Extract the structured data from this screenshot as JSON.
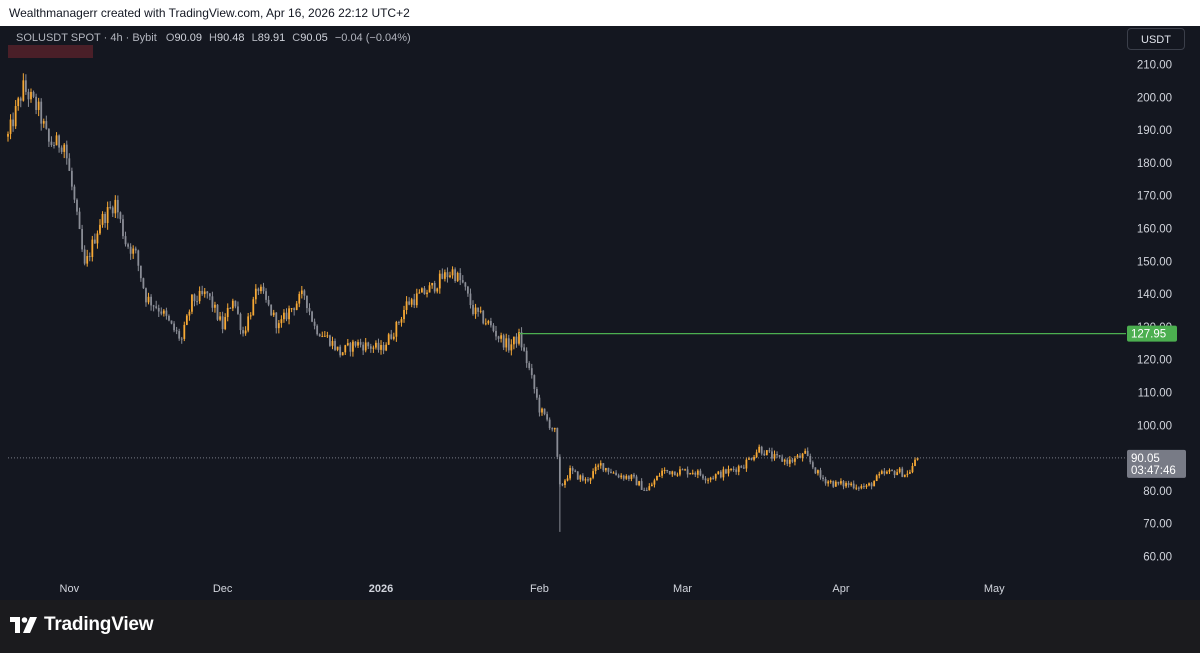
{
  "header": {
    "attribution": "Wealthmanagerr created with TradingView.com, Apr 16, 2026 22:12 UTC+2"
  },
  "legend": {
    "symbol": "SOLUSDT SPOT · 4h · Bybit",
    "open_label": "O",
    "open": "90.09",
    "high_label": "H",
    "high": "90.48",
    "low_label": "L",
    "low": "89.91",
    "close_label": "C",
    "close": "90.05",
    "change": "−0.04 (−0.04%)"
  },
  "currency_button": {
    "label": "USDT"
  },
  "footer": {
    "brand": "TradingView"
  },
  "colors": {
    "background": "#141720",
    "candle_up": "#f7a935",
    "candle_down": "#8a8d96",
    "horizontal_line": "#4caf50",
    "last_price_badge": "#787b86"
  },
  "chart_data": {
    "type": "line",
    "x_tick_labels": [
      "Nov",
      "Dec",
      "2026",
      "Feb",
      "Mar",
      "Apr",
      "May"
    ],
    "y_tick_labels": [
      "60.00",
      "70.00",
      "80.00",
      "90.00",
      "100.00",
      "110.00",
      "120.00",
      "130.00",
      "140.00",
      "150.00",
      "160.00",
      "170.00",
      "180.00",
      "190.00",
      "200.00",
      "210.00"
    ],
    "ylim": [
      57,
      213
    ],
    "grid": false,
    "series": [
      {
        "values": [
          {
            "x": "2025-10-20",
            "y": 188
          },
          {
            "x": "2025-10-23",
            "y": 203
          },
          {
            "x": "2025-10-26",
            "y": 196
          },
          {
            "x": "2025-10-28",
            "y": 186
          },
          {
            "x": "2025-10-31",
            "y": 186
          },
          {
            "x": "2025-11-02",
            "y": 168
          },
          {
            "x": "2025-11-04",
            "y": 148
          },
          {
            "x": "2025-11-07",
            "y": 162
          },
          {
            "x": "2025-11-10",
            "y": 168
          },
          {
            "x": "2025-11-12",
            "y": 156
          },
          {
            "x": "2025-11-14",
            "y": 152
          },
          {
            "x": "2025-11-16",
            "y": 139
          },
          {
            "x": "2025-11-19",
            "y": 135
          },
          {
            "x": "2025-11-21",
            "y": 130
          },
          {
            "x": "2025-11-23",
            "y": 126
          },
          {
            "x": "2025-11-25",
            "y": 138
          },
          {
            "x": "2025-11-28",
            "y": 140
          },
          {
            "x": "2025-12-01",
            "y": 130
          },
          {
            "x": "2025-12-03",
            "y": 139
          },
          {
            "x": "2025-12-05",
            "y": 128
          },
          {
            "x": "2025-12-08",
            "y": 142
          },
          {
            "x": "2025-12-10",
            "y": 136
          },
          {
            "x": "2025-12-12",
            "y": 130
          },
          {
            "x": "2025-12-14",
            "y": 135
          },
          {
            "x": "2025-12-17",
            "y": 140
          },
          {
            "x": "2025-12-19",
            "y": 130
          },
          {
            "x": "2025-12-22",
            "y": 126
          },
          {
            "x": "2025-12-24",
            "y": 122
          },
          {
            "x": "2025-12-27",
            "y": 125
          },
          {
            "x": "2025-12-30",
            "y": 124
          },
          {
            "x": "2026-01-01",
            "y": 123
          },
          {
            "x": "2026-01-04",
            "y": 130
          },
          {
            "x": "2026-01-06",
            "y": 137
          },
          {
            "x": "2026-01-08",
            "y": 139
          },
          {
            "x": "2026-01-11",
            "y": 142
          },
          {
            "x": "2026-01-13",
            "y": 145
          },
          {
            "x": "2026-01-15",
            "y": 147
          },
          {
            "x": "2026-01-17",
            "y": 143
          },
          {
            "x": "2026-01-19",
            "y": 135
          },
          {
            "x": "2026-01-22",
            "y": 131
          },
          {
            "x": "2026-01-24",
            "y": 127
          },
          {
            "x": "2026-01-26",
            "y": 124
          },
          {
            "x": "2026-01-28",
            "y": 127
          },
          {
            "x": "2026-01-30",
            "y": 117
          },
          {
            "x": "2026-02-01",
            "y": 105
          },
          {
            "x": "2026-02-04",
            "y": 98
          },
          {
            "x": "2026-02-05",
            "y": 81
          },
          {
            "x": "2026-02-07",
            "y": 86
          },
          {
            "x": "2026-02-10",
            "y": 83
          },
          {
            "x": "2026-02-13",
            "y": 88
          },
          {
            "x": "2026-02-16",
            "y": 85
          },
          {
            "x": "2026-02-19",
            "y": 84
          },
          {
            "x": "2026-02-22",
            "y": 80
          },
          {
            "x": "2026-02-25",
            "y": 86
          },
          {
            "x": "2026-02-28",
            "y": 86
          },
          {
            "x": "2026-03-03",
            "y": 86
          },
          {
            "x": "2026-03-06",
            "y": 84
          },
          {
            "x": "2026-03-10",
            "y": 86
          },
          {
            "x": "2026-03-13",
            "y": 88
          },
          {
            "x": "2026-03-16",
            "y": 93
          },
          {
            "x": "2026-03-19",
            "y": 90
          },
          {
            "x": "2026-03-22",
            "y": 89
          },
          {
            "x": "2026-03-25",
            "y": 91
          },
          {
            "x": "2026-03-28",
            "y": 84
          },
          {
            "x": "2026-03-31",
            "y": 82
          },
          {
            "x": "2026-04-03",
            "y": 82
          },
          {
            "x": "2026-04-06",
            "y": 81
          },
          {
            "x": "2026-04-09",
            "y": 85
          },
          {
            "x": "2026-04-12",
            "y": 86
          },
          {
            "x": "2026-04-14",
            "y": 85
          },
          {
            "x": "2026-04-16",
            "y": 90
          }
        ]
      }
    ],
    "annotations": [
      {
        "type": "horizontal-line",
        "value": 127.95,
        "label": "127.95",
        "from": "2026-01-28"
      },
      {
        "type": "last-price",
        "value": 90.05,
        "label": "90.05",
        "countdown": "03:47:46"
      }
    ]
  }
}
